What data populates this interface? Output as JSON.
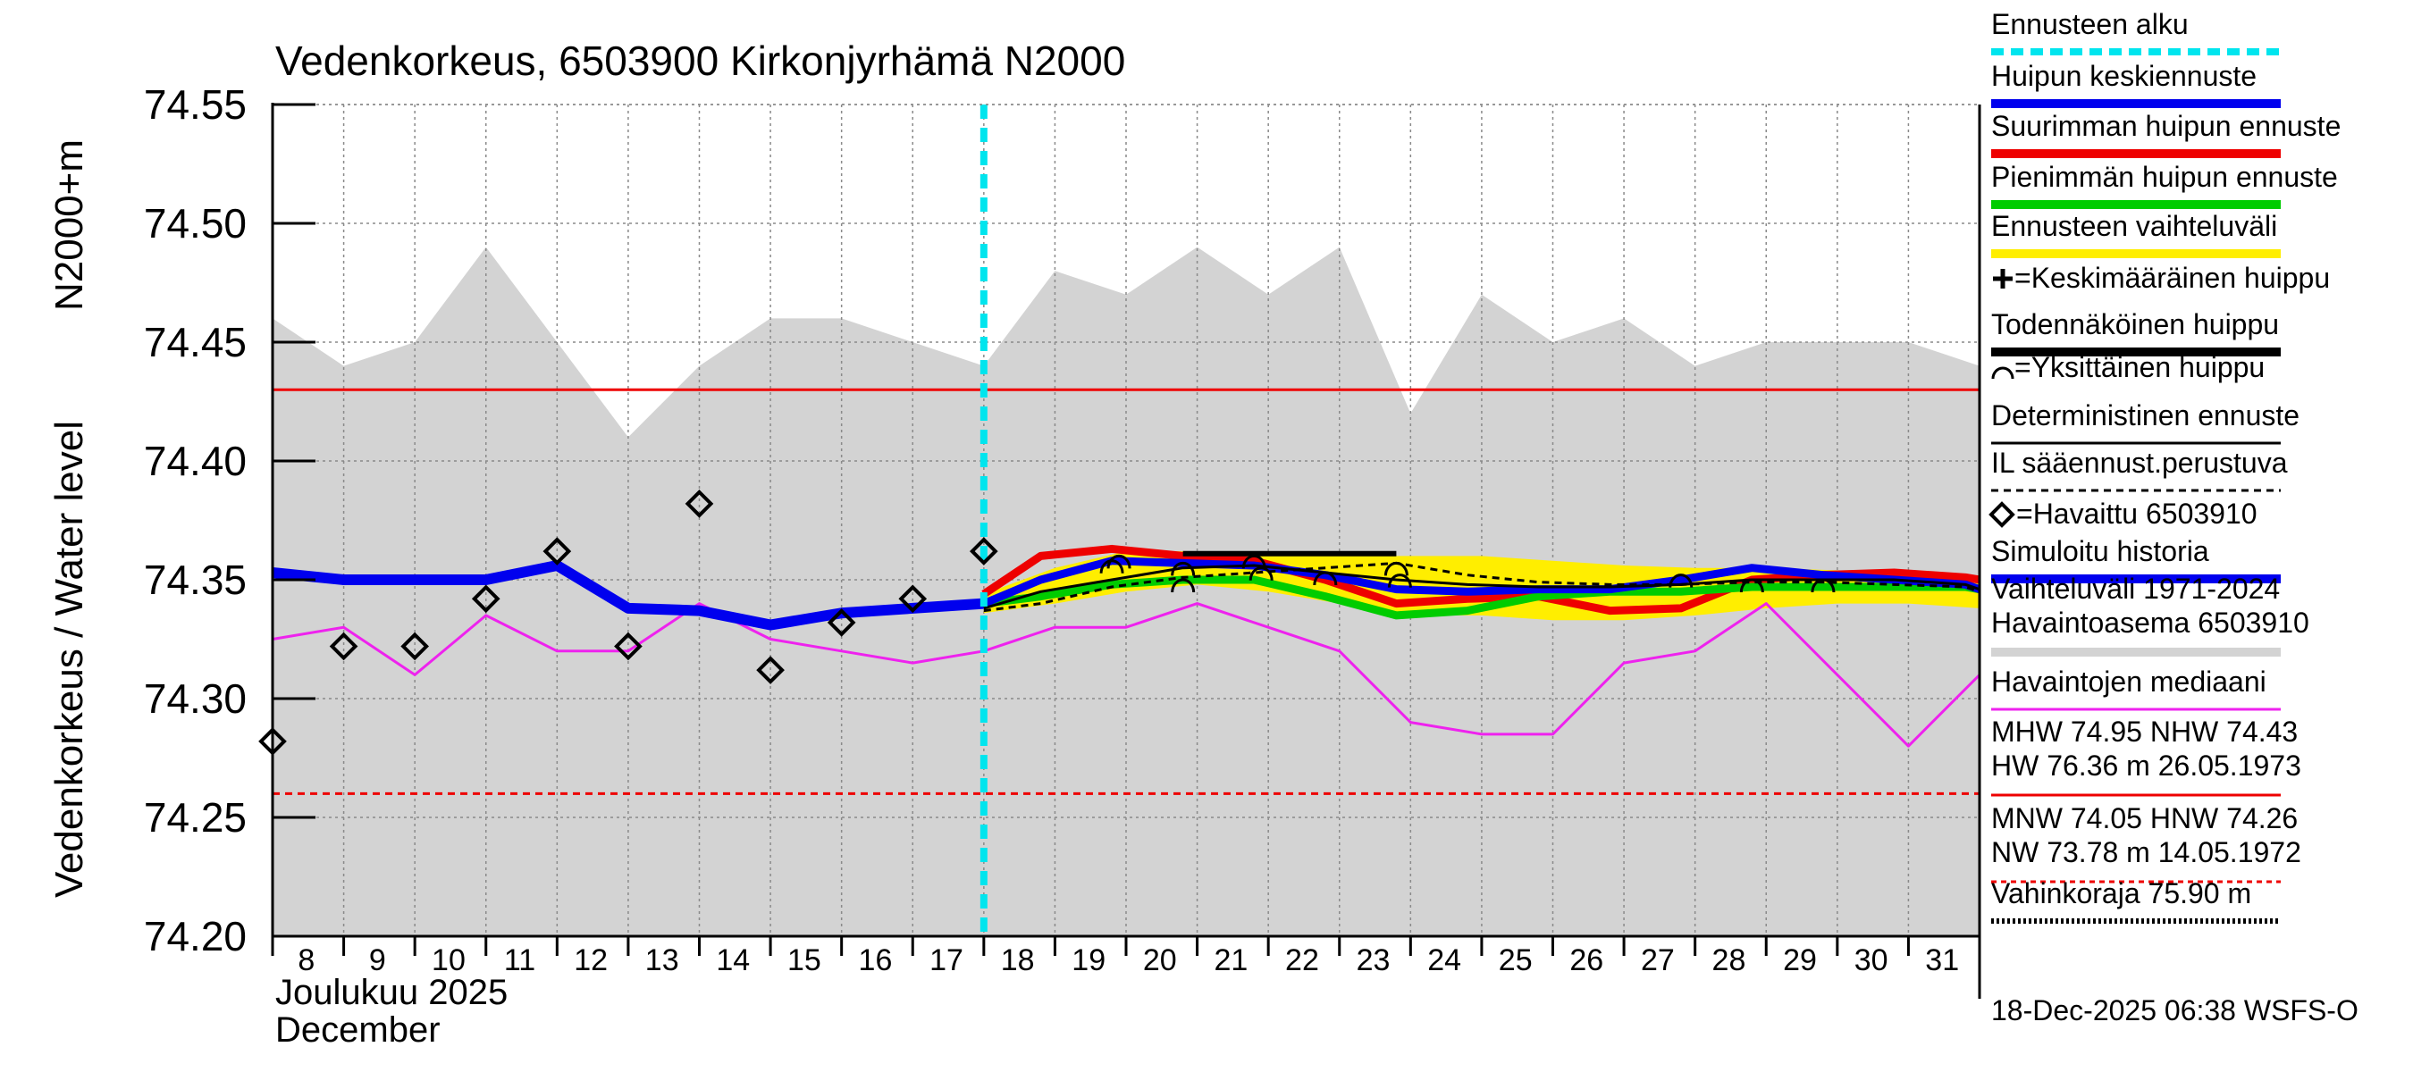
{
  "chart_data": {
    "type": "line",
    "title": "Vedenkorkeus, 6503900 Kirkonjyrhämä N2000",
    "ylabel_main": "Vedenkorkeus / Water level",
    "ylabel_unit": "N2000+m",
    "ylim": [
      74.2,
      74.55
    ],
    "yticks": [
      "74.20",
      "74.25",
      "74.30",
      "74.35",
      "74.40",
      "74.45",
      "74.50",
      "74.55"
    ],
    "xlim": [
      8,
      32
    ],
    "xticks": [
      "8",
      "9",
      "10",
      "11",
      "12",
      "13",
      "14",
      "15",
      "16",
      "17",
      "18",
      "19",
      "20",
      "21",
      "22",
      "23",
      "24",
      "25",
      "26",
      "27",
      "28",
      "29",
      "30",
      "31"
    ],
    "month_label_fi": "Joulukuu  2025",
    "month_label_en": "December",
    "forecast_start_day": 18.0,
    "hw_level": 74.43,
    "lw_level": 74.26,
    "variation_band": {
      "x": [
        8,
        9,
        10,
        11,
        12,
        13,
        14,
        15,
        16,
        17,
        18,
        19,
        20,
        21,
        22,
        23,
        24,
        25,
        26,
        27,
        28,
        29,
        30,
        31,
        32
      ],
      "upper": [
        74.46,
        74.44,
        74.45,
        74.49,
        74.45,
        74.41,
        74.44,
        74.46,
        74.46,
        74.45,
        74.44,
        74.48,
        74.47,
        74.49,
        74.47,
        74.49,
        74.42,
        74.47,
        74.45,
        74.46,
        74.44,
        74.45,
        74.45,
        74.45,
        74.44
      ],
      "lower": [
        74.2,
        74.2,
        74.2,
        74.2,
        74.2,
        74.2,
        74.2,
        74.2,
        74.2,
        74.2,
        74.2,
        74.2,
        74.2,
        74.2,
        74.2,
        74.2,
        74.2,
        74.2,
        74.2,
        74.2,
        74.2,
        74.2,
        74.2,
        74.2,
        74.2
      ]
    },
    "forecast_range": {
      "x": [
        18,
        19,
        20,
        21,
        22,
        23,
        24,
        25,
        26,
        27,
        28,
        29,
        30,
        31,
        32
      ],
      "upper": [
        74.344,
        74.355,
        74.362,
        74.362,
        74.36,
        74.36,
        74.36,
        74.36,
        74.358,
        74.356,
        74.355,
        74.355,
        74.354,
        74.352,
        74.35
      ],
      "lower": [
        74.336,
        74.34,
        74.345,
        74.348,
        74.345,
        74.34,
        74.335,
        74.335,
        74.333,
        74.333,
        74.335,
        74.338,
        74.34,
        74.34,
        74.338
      ]
    },
    "series": [
      {
        "name": "Havaintojen mediaani",
        "color": "#ee22ee",
        "width": 3,
        "x": [
          8,
          9,
          10,
          11,
          12,
          13,
          14,
          15,
          16,
          17,
          18,
          19,
          20,
          21,
          22,
          23,
          24,
          25,
          26,
          27,
          28,
          29,
          30,
          31,
          32
        ],
        "y": [
          74.325,
          74.33,
          74.31,
          74.335,
          74.32,
          74.32,
          74.34,
          74.325,
          74.32,
          74.315,
          74.32,
          74.33,
          74.33,
          74.34,
          74.33,
          74.32,
          74.29,
          74.285,
          74.285,
          74.315,
          74.32,
          74.34,
          74.31,
          74.28,
          74.31
        ]
      },
      {
        "name": "Simuloitu historia",
        "color": "#0000ee",
        "width": 12,
        "x": [
          8,
          9,
          10,
          11,
          12,
          13,
          14,
          15,
          16,
          17,
          18
        ],
        "y": [
          74.353,
          74.35,
          74.35,
          74.35,
          74.356,
          74.338,
          74.337,
          74.331,
          74.336,
          74.338,
          74.34
        ]
      },
      {
        "name": "Suurimman huipun ennuste",
        "color": "#ee0000",
        "width": 9,
        "x": [
          18,
          18.8,
          19.8,
          20.8,
          21.8,
          22.8,
          23.8,
          24.8,
          25.8,
          26.8,
          27.8,
          28.8,
          29.8,
          30.8,
          31.8,
          32
        ],
        "y": [
          74.344,
          74.36,
          74.363,
          74.36,
          74.358,
          74.35,
          74.34,
          74.342,
          74.343,
          74.337,
          74.338,
          74.35,
          74.352,
          74.353,
          74.351,
          74.35
        ]
      },
      {
        "name": "Pienimmän huipun ennuste",
        "color": "#00cc00",
        "width": 9,
        "x": [
          18,
          18.8,
          19.8,
          20.8,
          21.8,
          22.8,
          23.8,
          24.8,
          25.8,
          26.8,
          27.8,
          28.8,
          29.8,
          30.8,
          31.8,
          32
        ],
        "y": [
          74.34,
          74.343,
          74.348,
          74.35,
          74.35,
          74.343,
          74.335,
          74.337,
          74.343,
          74.345,
          74.345,
          74.347,
          74.347,
          74.347,
          74.347,
          74.346
        ]
      },
      {
        "name": "Huipun keskiennuste",
        "color": "#0000ee",
        "width": 9,
        "x": [
          18,
          18.8,
          19.8,
          20.8,
          21.8,
          22.8,
          23.8,
          24.8,
          25.8,
          26.8,
          27.8,
          28.8,
          29.8,
          30.8,
          31.8,
          32
        ],
        "y": [
          74.34,
          74.35,
          74.358,
          74.357,
          74.356,
          74.352,
          74.346,
          74.345,
          74.346,
          74.346,
          74.35,
          74.355,
          74.352,
          74.35,
          74.348,
          74.346
        ]
      },
      {
        "name": "Deterministinen ennuste",
        "color": "#000000",
        "width": 3,
        "x": [
          18,
          18.8,
          19.8,
          20.8,
          21.8,
          22.8,
          23.8,
          24.8,
          25.8,
          26.8,
          27.8,
          28.8,
          29.8,
          30.8,
          31.8,
          32
        ],
        "y": [
          74.338,
          74.345,
          74.35,
          74.355,
          74.356,
          74.353,
          74.35,
          74.348,
          74.347,
          74.347,
          74.348,
          74.35,
          74.35,
          74.35,
          74.348,
          74.346
        ]
      },
      {
        "name": "IL sääennust.perustuva",
        "color": "#000000",
        "width": 3,
        "dash": "8,6",
        "x": [
          18,
          18.8,
          19.8,
          20.8,
          21.8,
          22.8,
          23.8,
          24.8,
          25.8,
          26.8,
          27.8,
          28.8,
          29.8,
          30.8,
          31.8,
          32
        ],
        "y": [
          74.337,
          74.34,
          74.347,
          74.351,
          74.353,
          74.355,
          74.357,
          74.352,
          74.349,
          74.348,
          74.348,
          74.349,
          74.349,
          74.348,
          74.347,
          74.345
        ]
      }
    ],
    "probable_peak": {
      "x_start": 20.8,
      "x_end": 23.8,
      "y": 74.361
    },
    "single_peaks": [
      {
        "x": 19.8,
        "y": 74.358
      },
      {
        "x": 19.9,
        "y": 74.36
      },
      {
        "x": 20.8,
        "y": 74.35
      },
      {
        "x": 20.8,
        "y": 74.357
      },
      {
        "x": 21.8,
        "y": 74.36
      },
      {
        "x": 21.9,
        "y": 74.355
      },
      {
        "x": 22.8,
        "y": 74.353
      },
      {
        "x": 23.8,
        "y": 74.357
      },
      {
        "x": 23.85,
        "y": 74.352
      },
      {
        "x": 27.8,
        "y": 74.352
      },
      {
        "x": 28.8,
        "y": 74.35
      },
      {
        "x": 29.8,
        "y": 74.35
      }
    ],
    "observations": [
      {
        "x": 8.0,
        "y": 74.282
      },
      {
        "x": 9.0,
        "y": 74.322
      },
      {
        "x": 10.0,
        "y": 74.322
      },
      {
        "x": 11.0,
        "y": 74.342
      },
      {
        "x": 12.0,
        "y": 74.362
      },
      {
        "x": 13.0,
        "y": 74.322
      },
      {
        "x": 14.0,
        "y": 74.382
      },
      {
        "x": 15.0,
        "y": 74.312
      },
      {
        "x": 16.0,
        "y": 74.332
      },
      {
        "x": 17.0,
        "y": 74.342
      },
      {
        "x": 18.0,
        "y": 74.362
      }
    ],
    "legend": [
      {
        "label": "Ennusteen alku",
        "color": "#00e5ee",
        "kind": "dash-thick"
      },
      {
        "label": "Huipun keskiennuste",
        "color": "#0000ee",
        "kind": "thick"
      },
      {
        "label": "Suurimman huipun ennuste",
        "color": "#ee0000",
        "kind": "thick"
      },
      {
        "label": "Pienimmän huipun ennuste",
        "color": "#00cc00",
        "kind": "thick"
      },
      {
        "label": "Ennusteen vaihteluväli",
        "color": "#ffee00",
        "kind": "thick"
      },
      {
        "label": "=Keskimääräinen huippu",
        "color": "#000000",
        "kind": "plus"
      },
      {
        "label": "Todennäköinen huippu",
        "color": "#000000",
        "kind": "thick"
      },
      {
        "label": "=Yksittäinen huippu",
        "color": "#000000",
        "kind": "arc"
      },
      {
        "label": "Deterministinen ennuste",
        "color": "#000000",
        "kind": "thin"
      },
      {
        "label": "IL sääennust.perustuva",
        "color": "#000000",
        "kind": "dashed"
      },
      {
        "label": "=Havaittu 6503910",
        "color": "#000000",
        "kind": "diamond"
      },
      {
        "label": "Simuloitu historia",
        "color": "#0000ee",
        "kind": "thick"
      },
      {
        "label": "Vaihteluväli 1971-2024",
        "label2": "Havaintoasema 6503910",
        "color": "#d3d3d3",
        "kind": "thick"
      },
      {
        "label": "Havaintojen mediaani",
        "color": "#ee22ee",
        "kind": "thin"
      },
      {
        "label": "MHW  74.95 NHW  74.43",
        "label2": "HW  76.36 m 26.05.1973",
        "color": "#ee0000",
        "kind": "thin"
      },
      {
        "label": "MNW  74.05 HNW  74.26",
        "label2": "NW  73.78 m 14.05.1972",
        "color": "#ee0000",
        "kind": "dotted"
      },
      {
        "label": "Vahinkoraja 75.90 m",
        "color": "#000000",
        "kind": "dotted-thick"
      }
    ],
    "footer": "18-Dec-2025 06:38 WSFS-O"
  }
}
